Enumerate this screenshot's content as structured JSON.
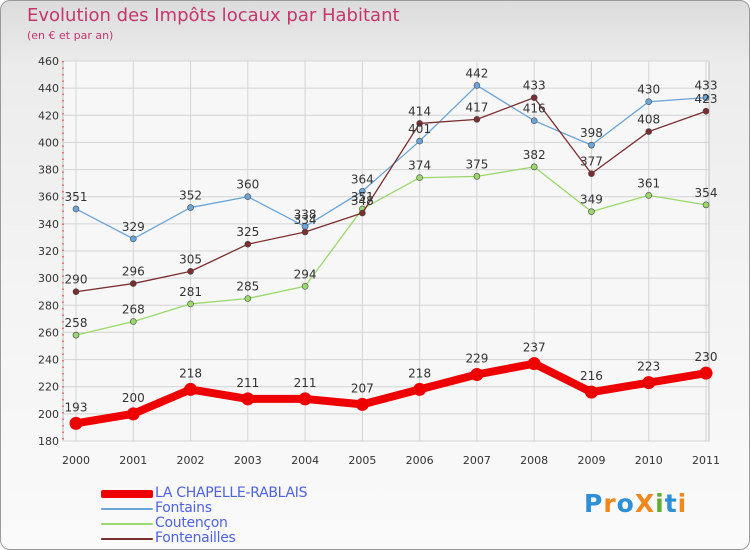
{
  "chart_title": "Evolution des Impôts locaux par Habitant",
  "chart_subtitle": "(en € et par an)",
  "logo_text": "ProXiti",
  "logo_colors": [
    "#2d8fd6",
    "#f0881c",
    "#2d8fd6",
    "#f0881c",
    "#5fb030",
    "#2d8fd6",
    "#f0881c"
  ],
  "chart_data": {
    "type": "line",
    "x": [
      "2000",
      "2001",
      "2002",
      "2003",
      "2004",
      "2005",
      "2006",
      "2007",
      "2008",
      "2009",
      "2010",
      "2011"
    ],
    "ylim": [
      180,
      460
    ],
    "yticks": [
      180,
      200,
      220,
      240,
      260,
      280,
      300,
      320,
      340,
      360,
      380,
      400,
      420,
      440,
      460
    ],
    "grid": true,
    "legend_position": "bottom-left",
    "series": [
      {
        "name": "LA CHAPELLE-RABLAIS",
        "color": "#ee0000",
        "emphasis": true,
        "values": [
          193,
          200,
          218,
          211,
          211,
          207,
          218,
          229,
          237,
          216,
          223,
          230
        ]
      },
      {
        "name": "Fontains",
        "color": "#6aa4d8",
        "values": [
          351,
          329,
          352,
          360,
          338,
          364,
          401,
          442,
          416,
          398,
          430,
          433
        ]
      },
      {
        "name": "Coutençon",
        "color": "#9ad86c",
        "values": [
          258,
          268,
          281,
          285,
          294,
          351,
          374,
          375,
          382,
          349,
          361,
          354
        ]
      },
      {
        "name": "Fontenailles",
        "color": "#7a2e2e",
        "values": [
          290,
          296,
          305,
          325,
          334,
          348,
          414,
          417,
          433,
          377,
          408,
          423
        ]
      }
    ]
  }
}
